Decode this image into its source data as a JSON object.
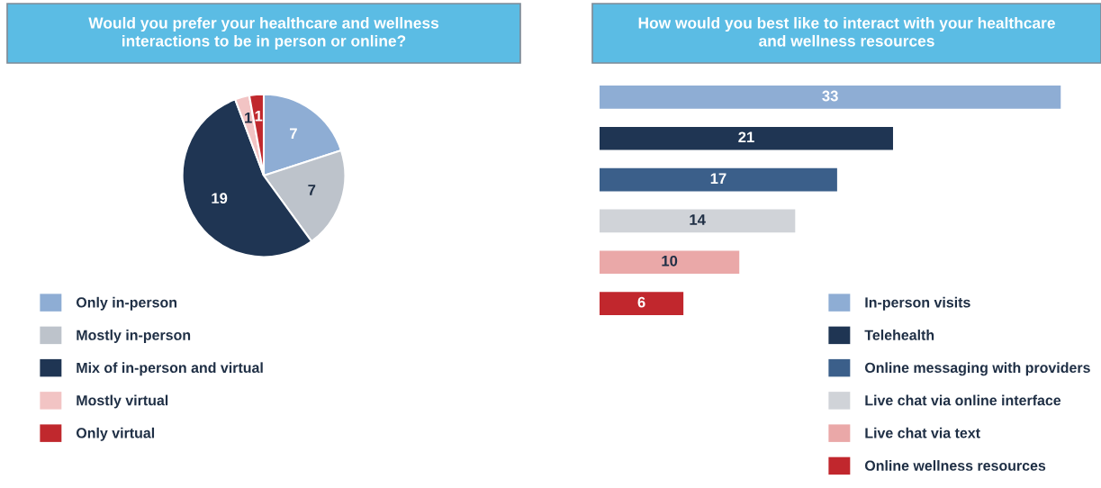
{
  "chart_data": [
    {
      "type": "pie",
      "title": "Would you prefer your healthcare and wellness\ninteractions to be in person or online?",
      "categories": [
        "Only in-person",
        "Mostly in-person",
        "Mix of in-person and virtual",
        "Mostly virtual",
        "Only virtual"
      ],
      "values": [
        7,
        7,
        19,
        1,
        1
      ],
      "colors": [
        "#8eadd4",
        "#bdc3cb",
        "#1f3553",
        "#f2c4c4",
        "#c0282d"
      ],
      "data_labels": true,
      "legend": "bottom"
    },
    {
      "type": "bar",
      "orientation": "horizontal",
      "stacked": true,
      "title": "How would you best like to interact with your healthcare\nand wellness resources",
      "categories": [
        null,
        null,
        null,
        null,
        null,
        null
      ],
      "series": [
        {
          "name": "In-person visits",
          "color": "#8eadd4",
          "values": [
            33,
            null,
            null,
            null,
            null,
            null
          ]
        },
        {
          "name": "Telehealth",
          "color": "#1f3553",
          "values": [
            null,
            21,
            null,
            null,
            null,
            null
          ]
        },
        {
          "name": "Online messaging with providers",
          "color": "#3b5f8a",
          "values": [
            null,
            null,
            17,
            null,
            null,
            null
          ]
        },
        {
          "name": "Live chat via online interface",
          "color": "#d0d3d8",
          "values": [
            null,
            null,
            null,
            14,
            null,
            null
          ]
        },
        {
          "name": "Live chat via text",
          "color": "#eaa8a8",
          "values": [
            null,
            null,
            null,
            null,
            10,
            null
          ]
        },
        {
          "name": "Online wellness resources",
          "color": "#c1272d",
          "values": [
            null,
            null,
            null,
            null,
            null,
            6
          ]
        }
      ],
      "data_labels": true,
      "legend": "bottom right"
    }
  ]
}
